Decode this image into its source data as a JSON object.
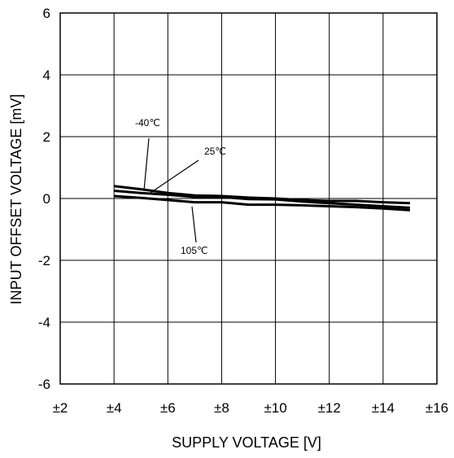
{
  "chart_data": {
    "type": "line",
    "title": "",
    "xlabel": "SUPPLY VOLTAGE [V]",
    "ylabel": "INPUT OFFSET VOLTAGE [mV]",
    "xlim": [
      2,
      16
    ],
    "ylim": [
      -6,
      6
    ],
    "x_ticks": [
      2,
      4,
      6,
      8,
      10,
      12,
      14,
      16
    ],
    "x_tick_labels": [
      "±2",
      "±4",
      "±6",
      "±8",
      "±10",
      "±12",
      "±14",
      "±16"
    ],
    "y_ticks": [
      -6,
      -4,
      -2,
      0,
      2,
      4,
      6
    ],
    "y_tick_labels": [
      "-6",
      "-4",
      "-2",
      "0",
      "2",
      "4",
      "6"
    ],
    "grid": true,
    "legend": "none",
    "series": [
      {
        "name": "-40℃",
        "x": [
          4,
          5,
          6,
          7,
          8,
          9,
          10,
          11,
          12,
          13,
          14,
          15
        ],
        "y": [
          0.4,
          0.3,
          0.18,
          0.1,
          0.08,
          0.03,
          0.0,
          -0.05,
          -0.08,
          -0.08,
          -0.12,
          -0.15
        ]
      },
      {
        "name": "25℃",
        "x": [
          4,
          5,
          6,
          7,
          8,
          9,
          10,
          11,
          12,
          13,
          14,
          15
        ],
        "y": [
          0.25,
          0.18,
          0.12,
          0.05,
          0.05,
          -0.02,
          -0.03,
          -0.1,
          -0.15,
          -0.2,
          -0.25,
          -0.3
        ]
      },
      {
        "name": "105℃",
        "x": [
          4,
          5,
          6,
          7,
          8,
          9,
          10,
          11,
          12,
          13,
          14,
          15
        ],
        "y": [
          0.08,
          0.02,
          -0.05,
          -0.12,
          -0.12,
          -0.2,
          -0.2,
          -0.22,
          -0.25,
          -0.28,
          -0.32,
          -0.38
        ]
      }
    ],
    "annotations": [
      {
        "text": "-40℃",
        "series": "-40℃"
      },
      {
        "text": "25℃",
        "series": "25℃"
      },
      {
        "text": "105℃",
        "series": "105℃"
      }
    ]
  }
}
